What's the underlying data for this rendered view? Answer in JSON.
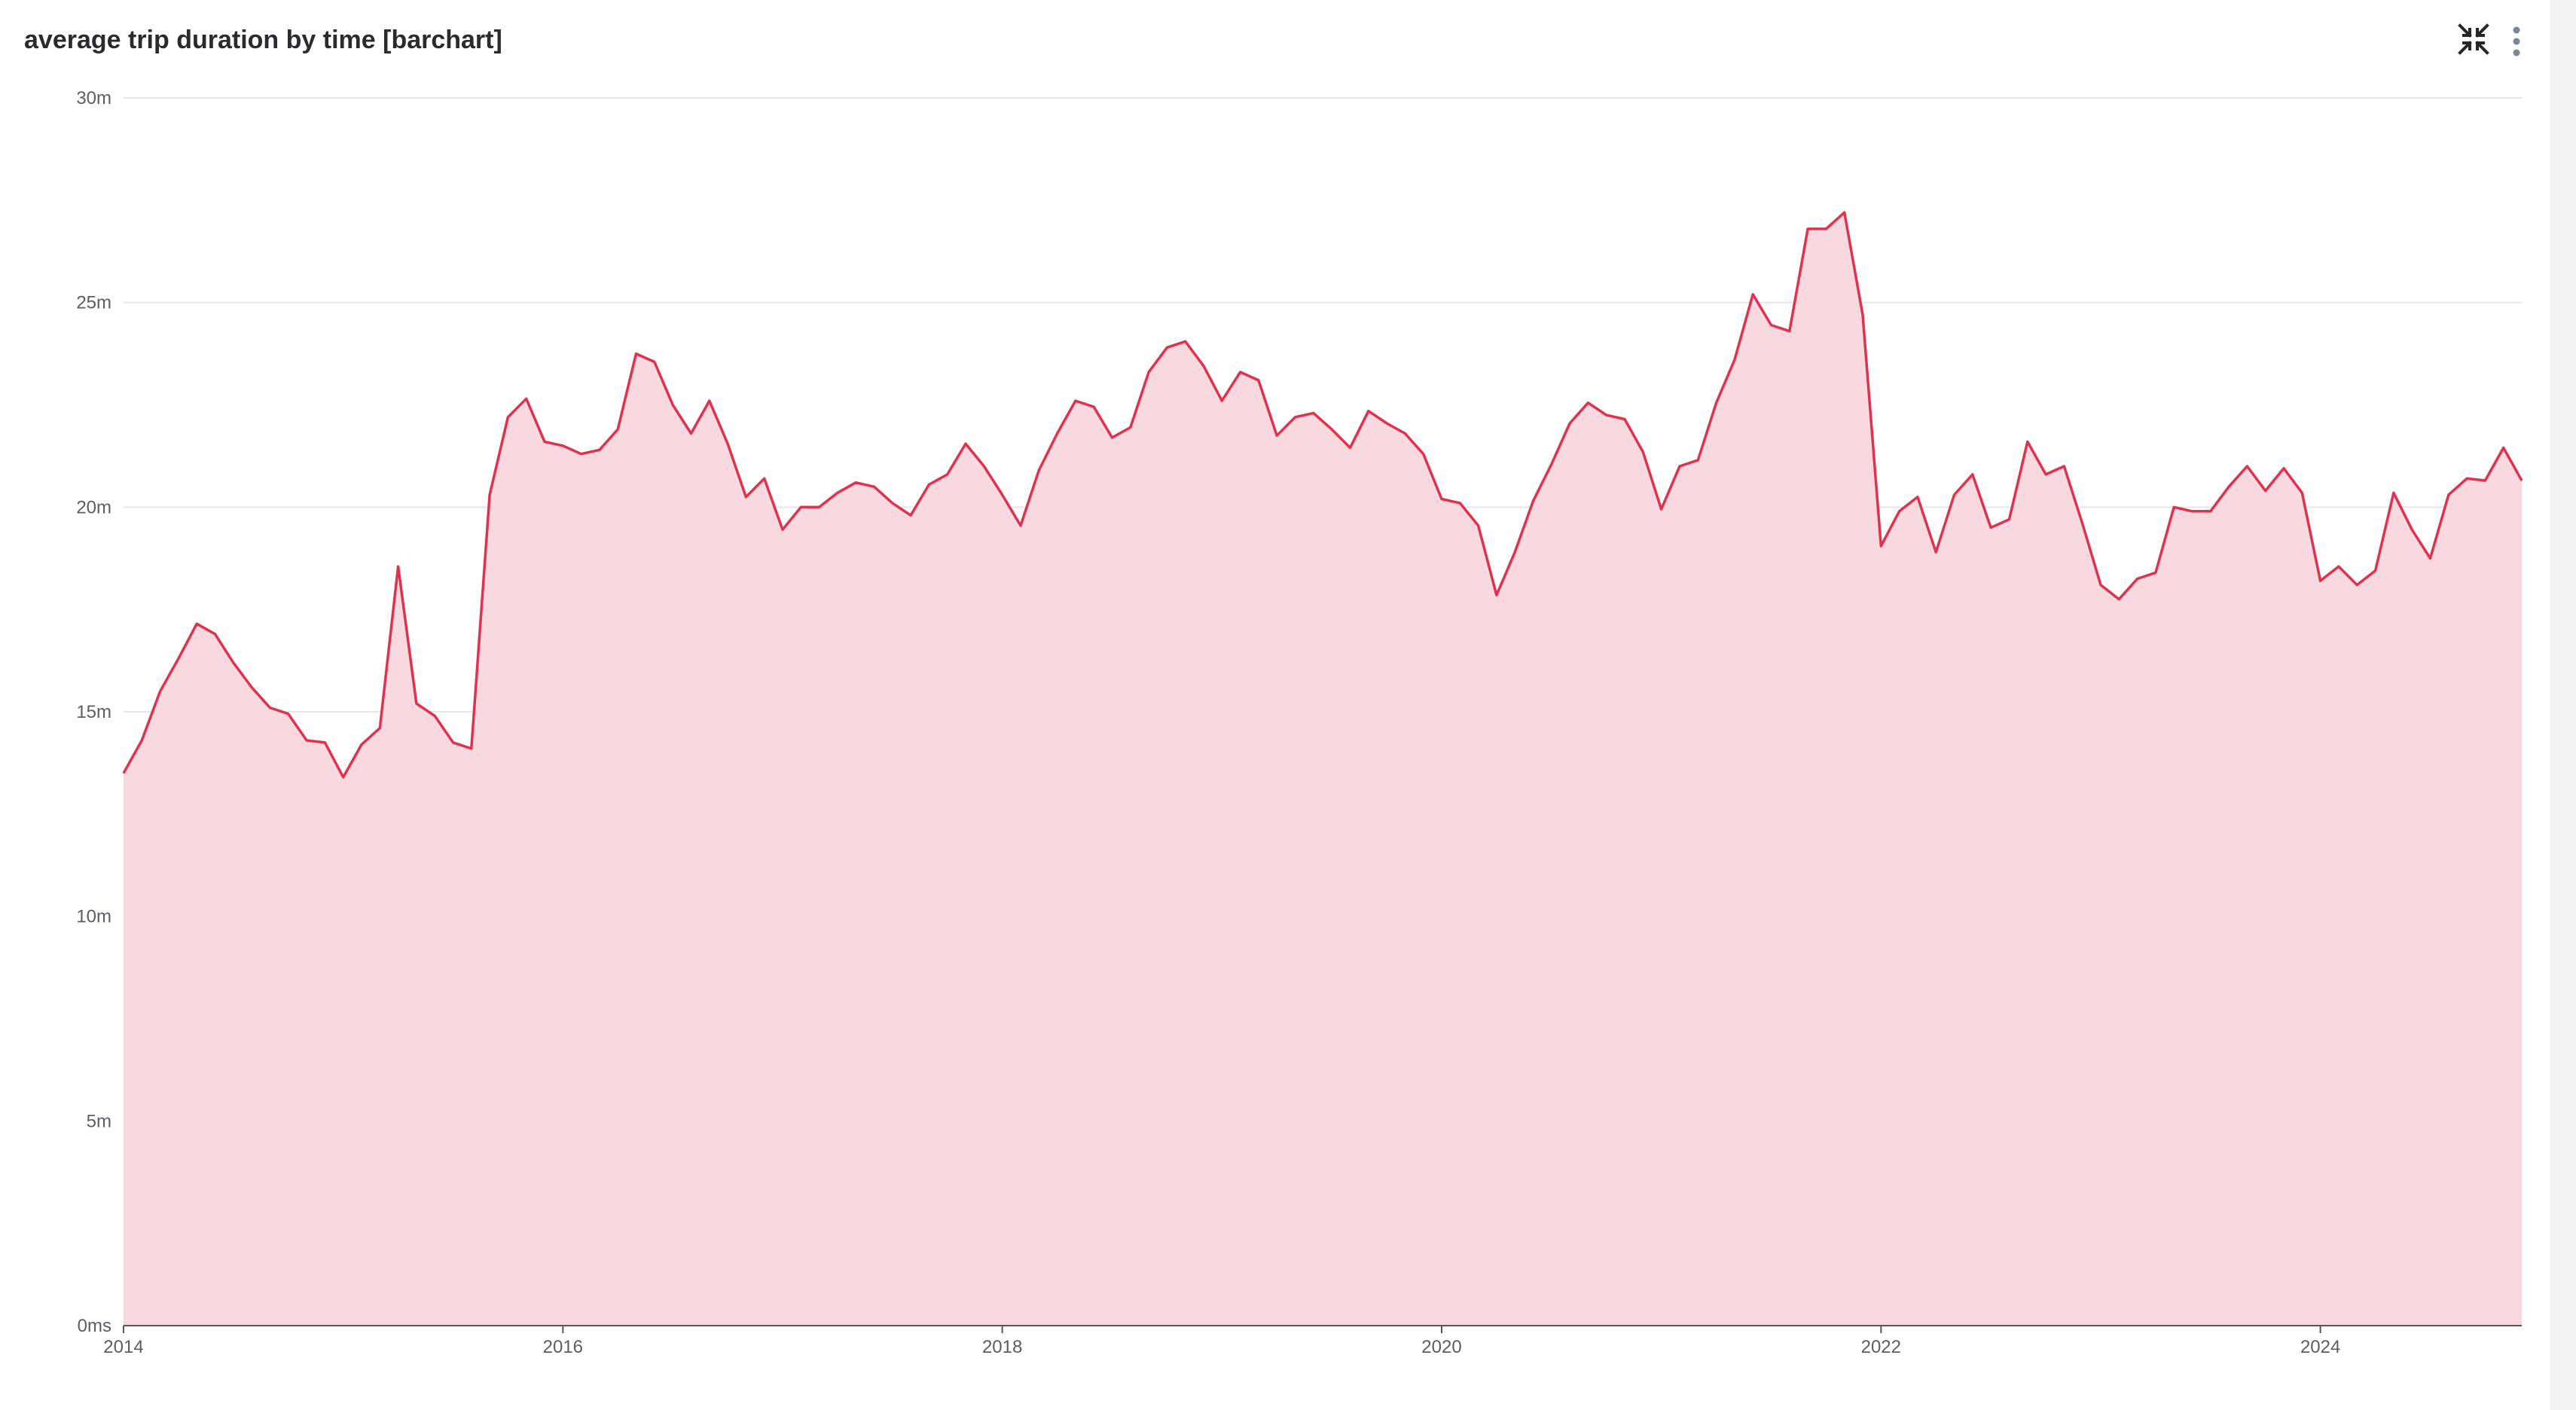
{
  "panel": {
    "title": "average trip duration by time [barchart]",
    "icons": [
      "collapse-icon",
      "more-vertical-icon"
    ]
  },
  "colors": {
    "line": "#e0314f",
    "area": "#f8d9df",
    "grid": "#e6e6e9",
    "axis": "#55555c",
    "text": "#5c5c66",
    "icon": "#26262b",
    "more_icon": "#7d8590"
  },
  "chart_data": {
    "type": "area",
    "title": "average trip duration by time [barchart]",
    "xlabel": "",
    "ylabel": "",
    "x_ticks": [
      "2014",
      "2016",
      "2018",
      "2020",
      "2022",
      "2024"
    ],
    "y_ticks": [
      {
        "value": 0,
        "label": "0ms"
      },
      {
        "value": 5,
        "label": "5m"
      },
      {
        "value": 10,
        "label": "10m"
      },
      {
        "value": 15,
        "label": "15m"
      },
      {
        "value": 20,
        "label": "20m"
      },
      {
        "value": 25,
        "label": "25m"
      },
      {
        "value": 30,
        "label": "30m"
      }
    ],
    "xlim": [
      "2014-01",
      "2024-12"
    ],
    "ylim": [
      0,
      30
    ],
    "y_unit": "minutes",
    "grid": true,
    "series": [
      {
        "x": [
          "2014-01",
          "2014-02",
          "2014-03",
          "2014-04",
          "2014-05",
          "2014-06",
          "2014-07",
          "2014-08",
          "2014-09",
          "2014-10",
          "2014-11",
          "2014-12",
          "2015-01",
          "2015-02",
          "2015-03",
          "2015-04",
          "2015-05",
          "2015-06",
          "2015-07",
          "2015-08",
          "2015-09",
          "2015-10",
          "2015-11",
          "2015-12",
          "2016-01",
          "2016-02",
          "2016-03",
          "2016-04",
          "2016-05",
          "2016-06",
          "2016-07",
          "2016-08",
          "2016-09",
          "2016-10",
          "2016-11",
          "2016-12",
          "2017-01",
          "2017-02",
          "2017-03",
          "2017-04",
          "2017-05",
          "2017-06",
          "2017-07",
          "2017-08",
          "2017-09",
          "2017-10",
          "2017-11",
          "2017-12",
          "2018-01",
          "2018-02",
          "2018-03",
          "2018-04",
          "2018-05",
          "2018-06",
          "2018-07",
          "2018-08",
          "2018-09",
          "2018-10",
          "2018-11",
          "2018-12",
          "2019-01",
          "2019-02",
          "2019-03",
          "2019-04",
          "2019-05",
          "2019-06",
          "2019-07",
          "2019-08",
          "2019-09",
          "2019-10",
          "2019-11",
          "2019-12",
          "2020-01",
          "2020-02",
          "2020-03",
          "2020-04",
          "2020-05",
          "2020-06",
          "2020-07",
          "2020-08",
          "2020-09",
          "2020-10",
          "2020-11",
          "2020-12",
          "2021-01",
          "2021-02",
          "2021-03",
          "2021-04",
          "2021-05",
          "2021-06",
          "2021-07",
          "2021-08",
          "2021-09",
          "2021-10",
          "2021-11",
          "2021-12",
          "2022-01",
          "2022-02",
          "2022-03",
          "2022-04",
          "2022-05",
          "2022-06",
          "2022-07",
          "2022-08",
          "2022-09",
          "2022-10",
          "2022-11",
          "2022-12",
          "2023-01",
          "2023-02",
          "2023-03",
          "2023-04",
          "2023-05",
          "2023-06",
          "2023-07",
          "2023-08",
          "2023-09",
          "2023-10",
          "2023-11",
          "2023-12",
          "2024-01",
          "2024-02",
          "2024-03",
          "2024-04",
          "2024-05",
          "2024-06",
          "2024-07",
          "2024-08",
          "2024-09",
          "2024-10",
          "2024-11",
          "2024-12"
        ],
        "values": [
          13.5,
          14.3,
          15.5,
          16.3,
          17.15,
          16.9,
          16.2,
          15.6,
          15.1,
          14.95,
          14.3,
          14.25,
          13.4,
          14.2,
          14.6,
          18.55,
          15.2,
          14.9,
          14.25,
          14.1,
          20.3,
          22.2,
          22.65,
          21.6,
          21.5,
          21.3,
          21.4,
          21.9,
          23.75,
          23.55,
          22.5,
          21.8,
          22.6,
          21.55,
          20.25,
          20.7,
          19.45,
          20.0,
          20.0,
          20.35,
          20.6,
          20.5,
          20.1,
          19.8,
          20.55,
          20.8,
          21.55,
          21.0,
          20.3,
          19.55,
          20.9,
          21.8,
          22.6,
          22.45,
          21.7,
          21.95,
          23.3,
          23.9,
          24.05,
          23.45,
          22.6,
          23.3,
          23.1,
          21.75,
          22.2,
          22.3,
          21.9,
          21.45,
          22.35,
          22.05,
          21.8,
          21.3,
          20.2,
          20.1,
          19.55,
          17.85,
          18.9,
          20.15,
          21.05,
          22.05,
          22.55,
          22.25,
          22.15,
          21.35,
          19.95,
          21.0,
          21.15,
          22.55,
          23.6,
          25.2,
          24.45,
          24.3,
          26.8,
          26.8,
          27.2,
          24.7,
          19.05,
          19.9,
          20.25,
          18.9,
          20.3,
          20.8,
          19.5,
          19.7,
          21.6,
          20.8,
          21.0,
          19.6,
          18.1,
          17.75,
          18.25,
          18.4,
          20.0,
          19.9,
          19.9,
          20.5,
          21.0,
          20.4,
          20.95,
          20.35,
          18.2,
          18.55,
          18.1,
          18.45,
          20.35,
          19.45,
          18.75,
          20.3,
          20.7,
          20.65,
          21.45,
          20.65
        ]
      }
    ]
  }
}
